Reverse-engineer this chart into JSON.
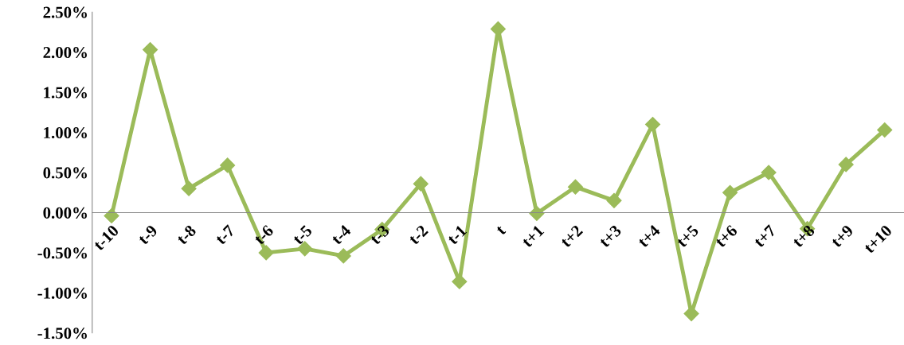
{
  "chart_data": {
    "type": "line",
    "categories": [
      "t-10",
      "t-9",
      "t-8",
      "t-7",
      "t-6",
      "t-5",
      "t-4",
      "t-3",
      "t-2",
      "t-1",
      "t",
      "t+1",
      "t+2",
      "t+3",
      "t+4",
      "t+5",
      "t+6",
      "t+7",
      "t+8",
      "t+9",
      "t+10"
    ],
    "series": [
      {
        "color": "#9bbb59",
        "values": [
          -0.04,
          2.03,
          0.3,
          0.59,
          -0.5,
          -0.45,
          -0.54,
          -0.21,
          0.36,
          -0.86,
          2.29,
          -0.01,
          0.32,
          0.15,
          1.1,
          -1.26,
          0.25,
          0.5,
          -0.2,
          0.6,
          1.03
        ]
      }
    ],
    "ylim": [
      -1.5,
      2.5
    ],
    "yticks": [
      {
        "value": -1.5,
        "label": "-1.50%"
      },
      {
        "value": -1.0,
        "label": "-1.00%"
      },
      {
        "value": -0.5,
        "label": "-0.50%"
      },
      {
        "value": 0,
        "label": "0.00%"
      },
      {
        "value": 0.5,
        "label": "0.50%"
      },
      {
        "value": 1.0,
        "label": "1.00%"
      },
      {
        "value": 1.5,
        "label": "1.50%"
      },
      {
        "value": 2.0,
        "label": "2.00%"
      },
      {
        "value": 2.5,
        "label": "2.50%"
      }
    ],
    "marker": "diamond",
    "line_style": "solid",
    "grid": false,
    "legend": false
  }
}
